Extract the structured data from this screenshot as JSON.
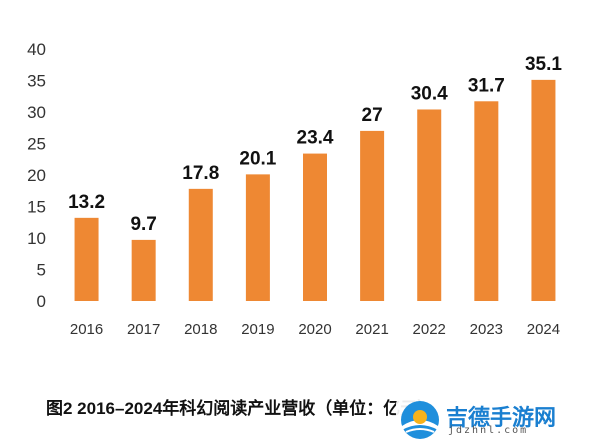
{
  "chart_data": {
    "type": "bar",
    "categories": [
      "2016",
      "2017",
      "2018",
      "2019",
      "2020",
      "2021",
      "2022",
      "2023",
      "2024"
    ],
    "values": [
      13.2,
      9.7,
      17.8,
      20.1,
      23.4,
      27,
      30.4,
      31.7,
      35.1
    ],
    "value_labels": [
      "13.2",
      "9.7",
      "17.8",
      "20.1",
      "23.4",
      "27",
      "30.4",
      "31.7",
      "35.1"
    ],
    "yticks": [
      "0",
      "5",
      "10",
      "15",
      "20",
      "25",
      "30",
      "35",
      "40"
    ],
    "ylim": [
      0,
      40
    ],
    "grid": false,
    "bar_color": "#ee8833",
    "caption": "图2  2016–2024年科幻阅读产业营收（单位：亿元）"
  },
  "watermark": {
    "name": "吉德手游网",
    "url": "jdzhnl.com",
    "logo_icon": "tree-sunrise-logo-icon"
  }
}
